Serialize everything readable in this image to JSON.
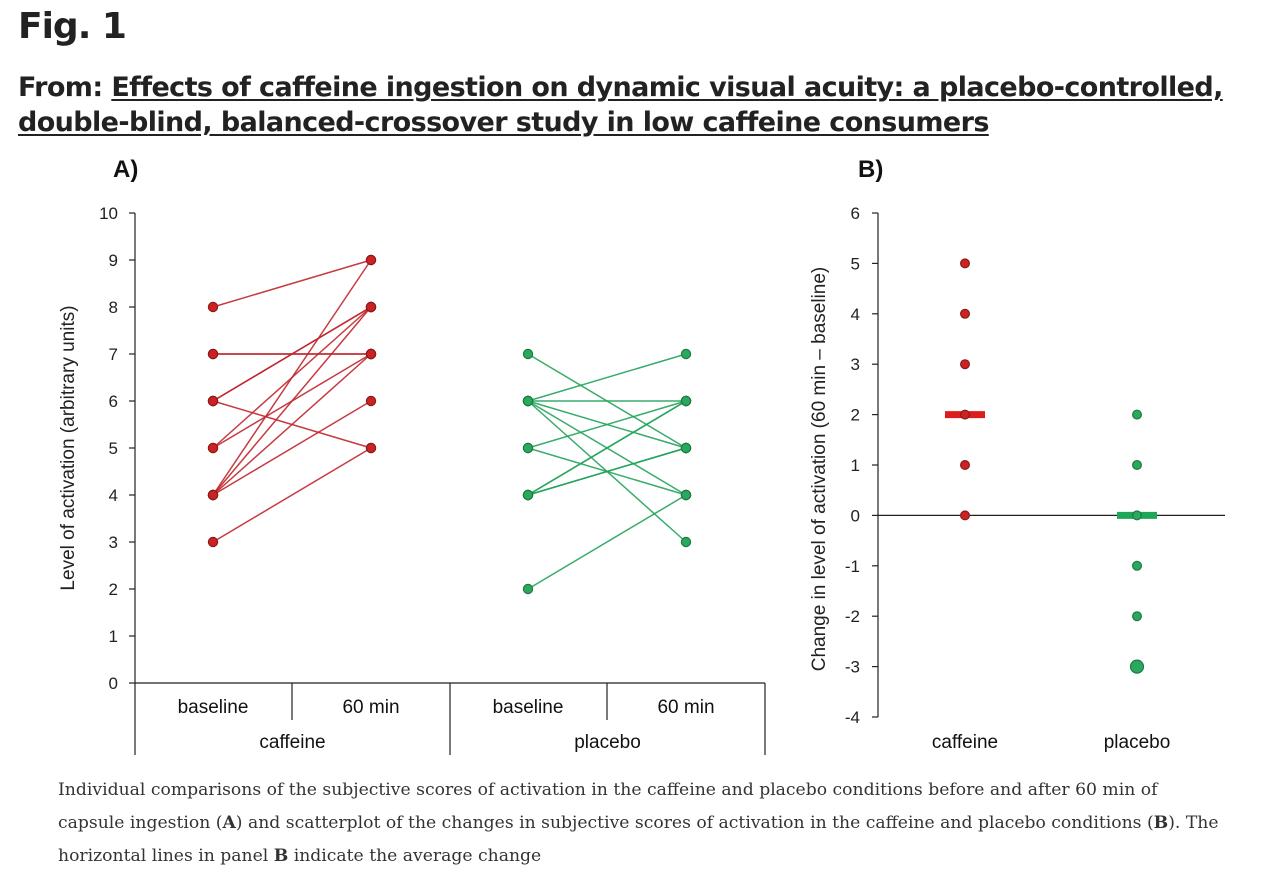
{
  "figure": {
    "label": "Fig. 1",
    "from_prefix": "From: ",
    "article_title": "Effects of caffeine ingestion on dynamic visual acuity: a placebo-controlled, double-blind, balanced-crossover study in low caffeine consumers"
  },
  "caption": {
    "t1": "Individual comparisons of the subjective scores of activation in the caffeine and placebo conditions before and after 60 min of capsule ingestion (",
    "b1": "A",
    "t2": ") and scatterplot of the changes in subjective scores of activation in the caffeine and placebo conditions (",
    "b2": "B",
    "t3": "). The horizontal lines in panel ",
    "b3": "B",
    "t4": " indicate the average change"
  },
  "colors": {
    "caffeine": "#c0262d",
    "caffeine_dark": "#8b1a1a",
    "caffeine_point": "#cc2222",
    "placebo": "#22a35a",
    "placebo_dark": "#1e7a3e",
    "placebo_point": "#2aa860",
    "axis": "#222222"
  },
  "chart_data": [
    {
      "panel": "A)",
      "type": "line",
      "ylabel": "Level of activation (arbitrary units)",
      "ylim": [
        0,
        10
      ],
      "yticks": [
        "0",
        "1",
        "2",
        "3",
        "4",
        "5",
        "6",
        "7",
        "8",
        "9",
        "10"
      ],
      "groups": [
        {
          "name": "caffeine",
          "categories": [
            "baseline",
            "60 min"
          ]
        },
        {
          "name": "placebo",
          "categories": [
            "baseline",
            "60 min"
          ]
        }
      ],
      "series": [
        {
          "name": "caffeine",
          "pairs": [
            [
              8,
              9
            ],
            [
              7,
              7
            ],
            [
              7,
              7
            ],
            [
              6,
              8
            ],
            [
              6,
              8
            ],
            [
              6,
              5
            ],
            [
              5,
              8
            ],
            [
              5,
              7
            ],
            [
              4,
              9
            ],
            [
              4,
              8
            ],
            [
              4,
              7
            ],
            [
              4,
              6
            ],
            [
              3,
              5
            ]
          ]
        },
        {
          "name": "placebo",
          "pairs": [
            [
              7,
              5
            ],
            [
              6,
              7
            ],
            [
              6,
              6
            ],
            [
              6,
              5
            ],
            [
              6,
              4
            ],
            [
              6,
              3
            ],
            [
              5,
              6
            ],
            [
              5,
              4
            ],
            [
              4,
              6
            ],
            [
              4,
              6
            ],
            [
              4,
              5
            ],
            [
              4,
              5
            ],
            [
              2,
              4
            ]
          ]
        }
      ]
    },
    {
      "panel": "B)",
      "type": "scatter",
      "ylabel": "Change in level of activation (60 min – baseline)",
      "ylim": [
        -4,
        6
      ],
      "yticks": [
        "-4",
        "-3",
        "-2",
        "-1",
        "0",
        "1",
        "2",
        "3",
        "4",
        "5",
        "6"
      ],
      "categories": [
        "caffeine",
        "placebo"
      ],
      "series": [
        {
          "name": "caffeine",
          "values": [
            5,
            4,
            3,
            2,
            1,
            0
          ],
          "mean": 2
        },
        {
          "name": "placebo",
          "values": [
            2,
            1,
            0,
            -1,
            -2,
            -3
          ],
          "mean": 0
        }
      ]
    }
  ]
}
